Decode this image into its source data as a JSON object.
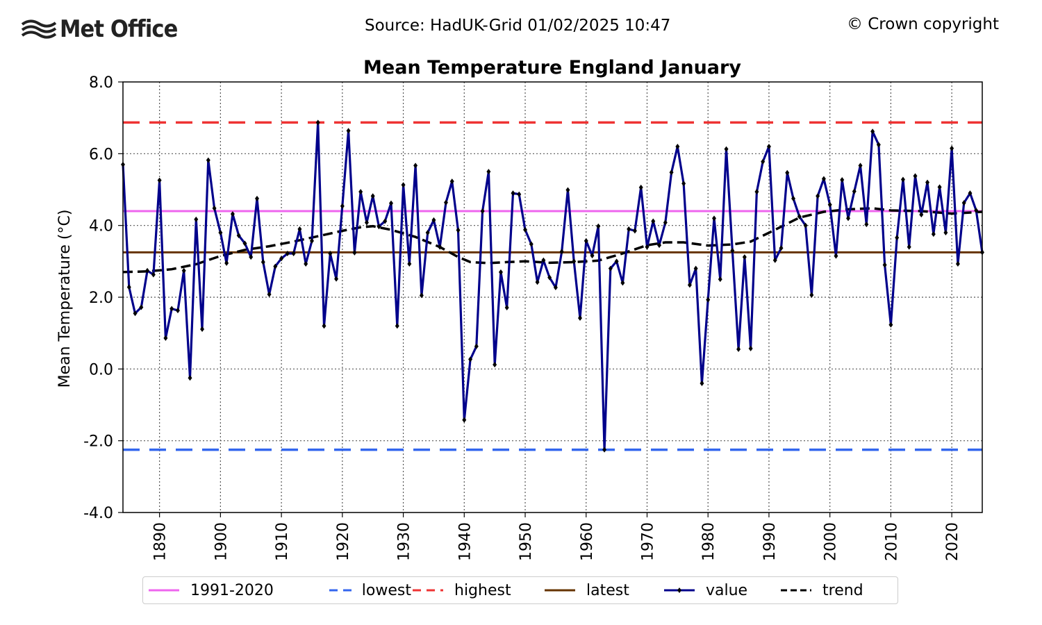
{
  "header": {
    "logo_text": "Met Office",
    "source": "Source: HadUK-Grid 01/02/2025 10:47",
    "copyright": "© Crown copyright"
  },
  "colors": {
    "value": "#00008b",
    "baseline": "#ee66ee",
    "lowest": "#3366ee",
    "highest": "#ee3333",
    "latest": "#663300",
    "trend": "#000000"
  },
  "chart_data": {
    "type": "line",
    "title": "Mean Temperature England January",
    "xlabel": "",
    "ylabel": "Mean Temperature (°C)",
    "xlim": [
      1884,
      2025
    ],
    "ylim": [
      -4.0,
      8.0
    ],
    "yticks": [
      "-4.0",
      "-2.0",
      "0.0",
      "2.0",
      "4.0",
      "6.0",
      "8.0"
    ],
    "xticks": [
      "1890",
      "1900",
      "1910",
      "1920",
      "1930",
      "1940",
      "1950",
      "1960",
      "1970",
      "1980",
      "1990",
      "2000",
      "2010",
      "2020"
    ],
    "grid": true,
    "legend_position": "bottom",
    "reference_lines": {
      "baseline_1991_2020": 4.4,
      "lowest": -2.25,
      "highest": 6.87,
      "latest": 3.25
    },
    "series": [
      {
        "name": "value",
        "x_start": 1884,
        "values": [
          5.7,
          2.28,
          1.55,
          1.72,
          2.74,
          2.63,
          5.26,
          0.86,
          1.68,
          1.63,
          2.74,
          -0.25,
          4.17,
          1.11,
          5.82,
          4.48,
          3.8,
          2.95,
          4.32,
          3.72,
          3.5,
          3.12,
          4.75,
          2.98,
          2.08,
          2.86,
          3.08,
          3.22,
          3.22,
          3.9,
          2.93,
          3.57,
          6.87,
          1.2,
          3.22,
          2.51,
          4.54,
          6.64,
          3.24,
          4.94,
          4.08,
          4.82,
          3.97,
          4.12,
          4.62,
          1.2,
          5.13,
          2.93,
          5.67,
          2.05,
          3.8,
          4.15,
          3.4,
          4.64,
          5.23,
          3.87,
          -1.42,
          0.27,
          0.63,
          4.4,
          5.5,
          0.12,
          2.7,
          1.71,
          4.9,
          4.87,
          3.88,
          3.48,
          2.42,
          3.03,
          2.55,
          2.27,
          3.27,
          4.99,
          3.0,
          1.42,
          3.57,
          3.16,
          3.98,
          -2.25,
          2.8,
          3.0,
          2.4,
          3.9,
          3.85,
          5.06,
          3.4,
          4.12,
          3.45,
          4.08,
          5.48,
          6.2,
          5.17,
          2.34,
          2.8,
          -0.4,
          1.93,
          4.2,
          2.5,
          6.13,
          3.3,
          0.55,
          3.12,
          0.57,
          4.94,
          5.78,
          6.2,
          3.03,
          3.37,
          5.47,
          4.75,
          4.25,
          4.0,
          2.06,
          4.82,
          5.3,
          4.58,
          3.15,
          5.27,
          4.2,
          4.95,
          5.67,
          4.03,
          6.62,
          6.25,
          2.9,
          1.23,
          3.66,
          5.28,
          3.4,
          5.38,
          4.3,
          5.2,
          3.76,
          5.07,
          3.8,
          6.15,
          2.93,
          4.63,
          4.9,
          4.42,
          3.25
        ]
      },
      {
        "name": "trend",
        "points": [
          [
            1884,
            2.7
          ],
          [
            1888,
            2.72
          ],
          [
            1892,
            2.78
          ],
          [
            1896,
            2.92
          ],
          [
            1900,
            3.15
          ],
          [
            1904,
            3.32
          ],
          [
            1908,
            3.42
          ],
          [
            1912,
            3.55
          ],
          [
            1916,
            3.7
          ],
          [
            1920,
            3.85
          ],
          [
            1923,
            3.95
          ],
          [
            1925,
            3.98
          ],
          [
            1928,
            3.88
          ],
          [
            1932,
            3.68
          ],
          [
            1936,
            3.4
          ],
          [
            1939,
            3.12
          ],
          [
            1941,
            2.98
          ],
          [
            1944,
            2.95
          ],
          [
            1947,
            2.98
          ],
          [
            1950,
            3.0
          ],
          [
            1954,
            2.96
          ],
          [
            1958,
            2.98
          ],
          [
            1962,
            3.02
          ],
          [
            1966,
            3.22
          ],
          [
            1970,
            3.45
          ],
          [
            1973,
            3.53
          ],
          [
            1976,
            3.53
          ],
          [
            1980,
            3.44
          ],
          [
            1984,
            3.47
          ],
          [
            1987,
            3.55
          ],
          [
            1991,
            3.88
          ],
          [
            1995,
            4.22
          ],
          [
            1999,
            4.38
          ],
          [
            2003,
            4.45
          ],
          [
            2007,
            4.48
          ],
          [
            2010,
            4.42
          ],
          [
            2015,
            4.4
          ],
          [
            2020,
            4.33
          ],
          [
            2025,
            4.38
          ]
        ]
      }
    ]
  },
  "legend": [
    {
      "label": "1991-2020",
      "key": "baseline"
    },
    {
      "label": "lowest",
      "key": "lowest"
    },
    {
      "label": "highest",
      "key": "highest"
    },
    {
      "label": "latest",
      "key": "latest"
    },
    {
      "label": "value",
      "key": "value"
    },
    {
      "label": "trend",
      "key": "trend"
    }
  ]
}
